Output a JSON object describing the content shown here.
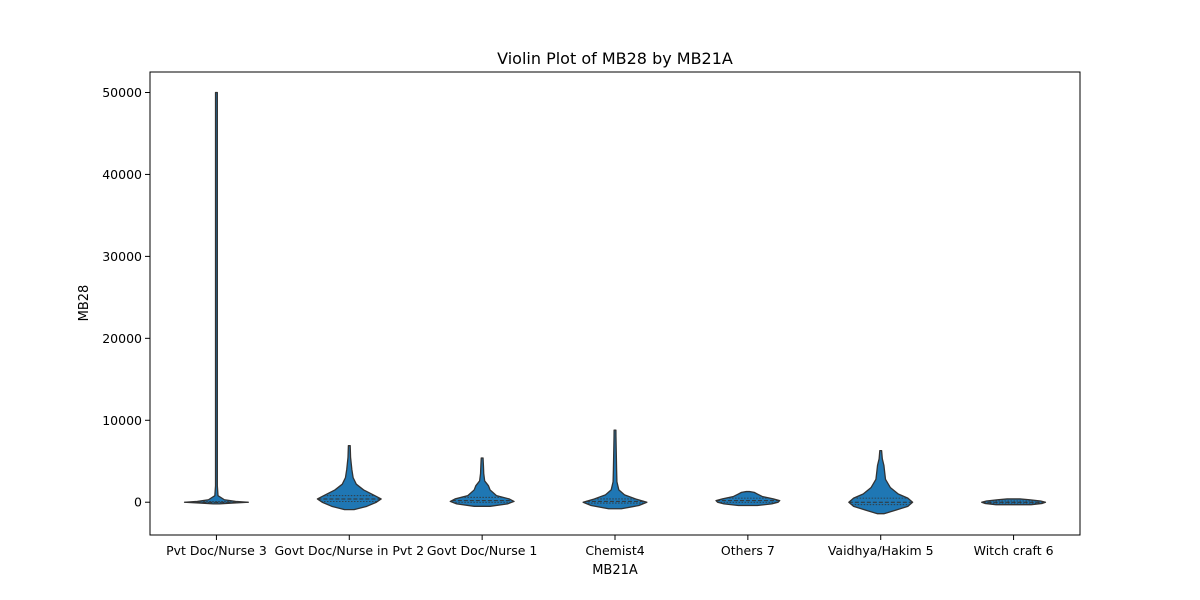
{
  "chart_data": {
    "type": "violin",
    "title": "Violin Plot of MB28 by MB21A",
    "xlabel": "MB21A",
    "ylabel": "MB28",
    "ylim": [
      -4000,
      52500
    ],
    "yticks": [
      0,
      10000,
      20000,
      30000,
      40000,
      50000
    ],
    "grid": false,
    "legend": "none",
    "color": "#1f77b4",
    "edge_color": "#333333",
    "categories": [
      "Pvt Doc/Nurse 3",
      "Govt Doc/Nurse in Pvt 2",
      "Govt Doc/Nurse 1",
      "Chemist4",
      "Others 7",
      "Vaidhya/Hakim 5",
      "Witch craft 6"
    ],
    "violins": [
      {
        "category": "Pvt Doc/Nurse 3",
        "min": -200,
        "max": 50000,
        "q1": -50,
        "median": 0,
        "q3": 100,
        "profile": [
          [
            -200,
            0.1
          ],
          [
            -100,
            0.5
          ],
          [
            0,
            1.0
          ],
          [
            100,
            0.6
          ],
          [
            300,
            0.25
          ],
          [
            800,
            0.05
          ],
          [
            2000,
            0.02
          ],
          [
            50000,
            0.02
          ]
        ]
      },
      {
        "category": "Govt Doc/Nurse in Pvt 2",
        "min": -900,
        "max": 6900,
        "q1": 100,
        "median": 400,
        "q3": 800,
        "profile": [
          [
            -900,
            0.15
          ],
          [
            -500,
            0.55
          ],
          [
            0,
            0.85
          ],
          [
            400,
            1.0
          ],
          [
            900,
            0.75
          ],
          [
            1500,
            0.45
          ],
          [
            2200,
            0.22
          ],
          [
            3000,
            0.12
          ],
          [
            4000,
            0.08
          ],
          [
            5500,
            0.04
          ],
          [
            6900,
            0.02
          ]
        ]
      },
      {
        "category": "Govt Doc/Nurse 1",
        "min": -500,
        "max": 5400,
        "q1": 0,
        "median": 200,
        "q3": 600,
        "profile": [
          [
            -500,
            0.25
          ],
          [
            -200,
            0.8
          ],
          [
            100,
            1.0
          ],
          [
            400,
            0.85
          ],
          [
            800,
            0.45
          ],
          [
            1500,
            0.25
          ],
          [
            2000,
            0.2
          ],
          [
            2600,
            0.08
          ],
          [
            3500,
            0.05
          ],
          [
            4500,
            0.04
          ],
          [
            5400,
            0.02
          ]
        ]
      },
      {
        "category": "Chemist4",
        "min": -800,
        "max": 8800,
        "q1": -100,
        "median": 100,
        "q3": 400,
        "profile": [
          [
            -800,
            0.2
          ],
          [
            -400,
            0.75
          ],
          [
            0,
            1.0
          ],
          [
            400,
            0.65
          ],
          [
            900,
            0.3
          ],
          [
            1500,
            0.12
          ],
          [
            2500,
            0.06
          ],
          [
            4000,
            0.05
          ],
          [
            6000,
            0.04
          ],
          [
            8000,
            0.03
          ],
          [
            8800,
            0.02
          ]
        ]
      },
      {
        "category": "Others 7",
        "min": -400,
        "max": 1300,
        "q1": 0,
        "median": 200,
        "q3": 500,
        "profile": [
          [
            -400,
            0.3
          ],
          [
            -200,
            0.75
          ],
          [
            0,
            0.95
          ],
          [
            200,
            1.0
          ],
          [
            400,
            0.8
          ],
          [
            700,
            0.45
          ],
          [
            1000,
            0.3
          ],
          [
            1200,
            0.2
          ],
          [
            1300,
            0.05
          ]
        ]
      },
      {
        "category": "Vaidhya/Hakim 5",
        "min": -1400,
        "max": 6300,
        "q1": -300,
        "median": 0,
        "q3": 500,
        "profile": [
          [
            -1400,
            0.1
          ],
          [
            -1000,
            0.45
          ],
          [
            -500,
            0.85
          ],
          [
            0,
            1.0
          ],
          [
            500,
            0.85
          ],
          [
            1000,
            0.55
          ],
          [
            1800,
            0.3
          ],
          [
            2800,
            0.15
          ],
          [
            3800,
            0.12
          ],
          [
            4500,
            0.1
          ],
          [
            5300,
            0.05
          ],
          [
            6300,
            0.02
          ]
        ]
      },
      {
        "category": "Witch craft 6",
        "min": -300,
        "max": 400,
        "q1": -100,
        "median": 0,
        "q3": 150,
        "profile": [
          [
            -300,
            0.55
          ],
          [
            -150,
            0.9
          ],
          [
            0,
            1.0
          ],
          [
            150,
            0.85
          ],
          [
            300,
            0.5
          ],
          [
            400,
            0.2
          ]
        ]
      }
    ]
  }
}
